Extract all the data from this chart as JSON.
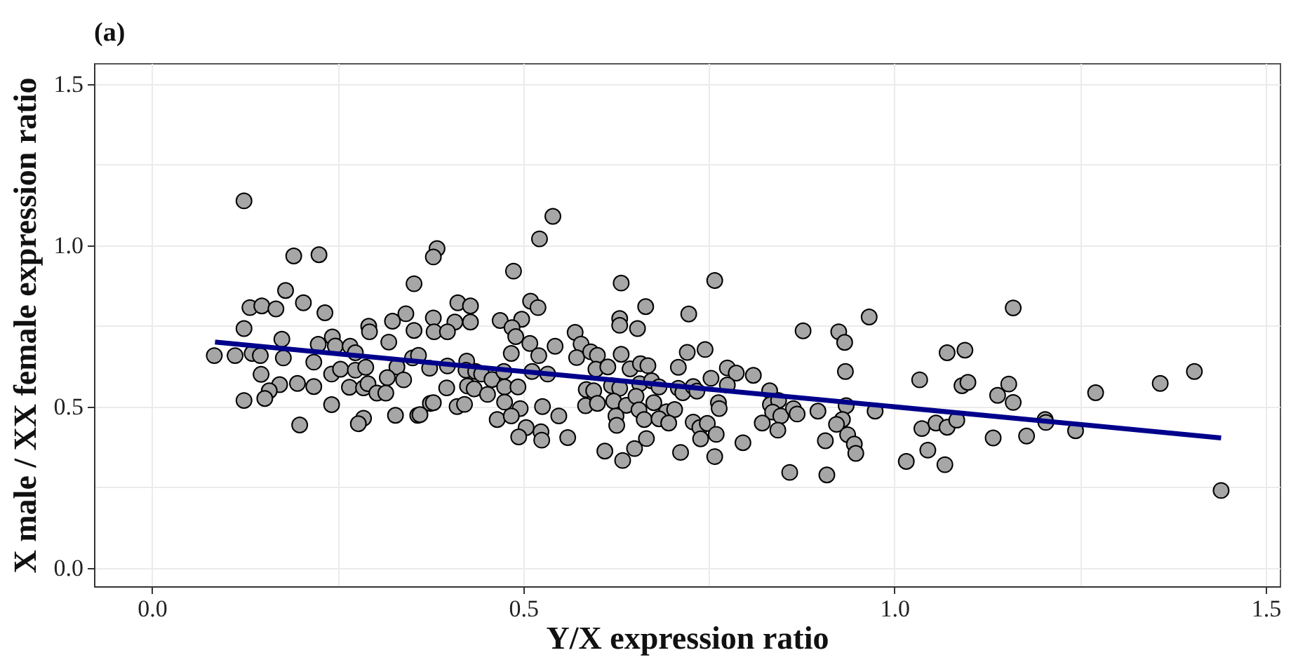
{
  "chart_data": {
    "type": "scatter",
    "title": "(a)",
    "xlabel": "Y/X expression ratio",
    "ylabel": "X male / XX female expression ratio",
    "xlim": [
      -0.078,
      1.519
    ],
    "ylim": [
      -0.057,
      1.565
    ],
    "xticks": [
      {
        "value": 0,
        "label": "0.0"
      },
      {
        "value": 0.25,
        "label": null
      },
      {
        "value": 0.5,
        "label": "0.5"
      },
      {
        "value": 0.75,
        "label": null
      },
      {
        "value": 1,
        "label": "1.0"
      },
      {
        "value": 1.25,
        "label": null
      },
      {
        "value": 1.5,
        "label": "1.5"
      }
    ],
    "yticks": [
      {
        "value": 0,
        "label": "0.0"
      },
      {
        "value": 0.25,
        "label": null
      },
      {
        "value": 0.5,
        "label": "0.5"
      },
      {
        "value": 0.75,
        "label": null
      },
      {
        "value": 1,
        "label": "1.0"
      },
      {
        "value": 1.25,
        "label": null
      },
      {
        "value": 1.5,
        "label": "1.5"
      }
    ],
    "grid": true,
    "marker": "circle",
    "series": [
      {
        "color": "#a6a6a6",
        "x": [
          0.124,
          0.191,
          0.225,
          0.353,
          0.18,
          0.132,
          0.148,
          0.167,
          0.204,
          0.233,
          0.342,
          0.324,
          0.124,
          0.292,
          0.293,
          0.353,
          0.175,
          0.243,
          0.319,
          0.224,
          0.247,
          0.267,
          0.084,
          0.112,
          0.135,
          0.146,
          0.177,
          0.218,
          0.274,
          0.351,
          0.147,
          0.242,
          0.254,
          0.274,
          0.288,
          0.33,
          0.339,
          0.317,
          0.196,
          0.218,
          0.172,
          0.158,
          0.152,
          0.124,
          0.242,
          0.266,
          0.285,
          0.291,
          0.303,
          0.315,
          0.285,
          0.278,
          0.328,
          0.358,
          0.199,
          0.54,
          0.522,
          0.384,
          0.379,
          0.487,
          0.632,
          0.758,
          0.412,
          0.429,
          0.51,
          0.52,
          0.665,
          0.723,
          0.379,
          0.408,
          0.429,
          0.469,
          0.498,
          0.38,
          0.398,
          0.485,
          0.49,
          0.63,
          0.63,
          0.654,
          0.57,
          0.578,
          0.509,
          0.543,
          0.484,
          0.521,
          0.572,
          0.591,
          0.6,
          0.632,
          0.721,
          0.745,
          0.359,
          0.374,
          0.398,
          0.424,
          0.423,
          0.436,
          0.444,
          0.458,
          0.474,
          0.512,
          0.533,
          0.598,
          0.614,
          0.644,
          0.658,
          0.668,
          0.709,
          0.753,
          0.775,
          0.787,
          0.397,
          0.425,
          0.434,
          0.452,
          0.475,
          0.493,
          0.585,
          0.595,
          0.619,
          0.63,
          0.657,
          0.673,
          0.683,
          0.709,
          0.715,
          0.729,
          0.734,
          0.775,
          0.375,
          0.379,
          0.411,
          0.421,
          0.475,
          0.496,
          0.526,
          0.584,
          0.6,
          0.622,
          0.639,
          0.652,
          0.656,
          0.676,
          0.693,
          0.704,
          0.763,
          0.764,
          0.361,
          0.465,
          0.484,
          0.548,
          0.625,
          0.626,
          0.663,
          0.683,
          0.696,
          0.729,
          0.738,
          0.748,
          0.76,
          0.504,
          0.494,
          0.524,
          0.525,
          0.56,
          0.666,
          0.739,
          0.61,
          0.65,
          0.712,
          0.634,
          0.758,
          0.796,
          0.966,
          0.877,
          0.925,
          0.933,
          1.16,
          1.071,
          1.095,
          0.934,
          0.81,
          1.034,
          1.091,
          1.099,
          1.154,
          1.16,
          1.139,
          0.832,
          0.833,
          0.844,
          0.836,
          0.847,
          0.864,
          0.869,
          0.897,
          0.935,
          0.974,
          0.822,
          0.843,
          0.93,
          0.922,
          0.937,
          0.946,
          0.948,
          0.907,
          0.859,
          0.909,
          1.037,
          1.056,
          1.071,
          1.084,
          1.133,
          1.178,
          1.203,
          1.204,
          1.016,
          1.045,
          1.068,
          1.244,
          1.271,
          1.358,
          1.404,
          1.44
        ],
        "values": [
          1.138,
          0.967,
          0.971,
          0.881,
          0.86,
          0.807,
          0.812,
          0.803,
          0.822,
          0.791,
          0.788,
          0.765,
          0.742,
          0.749,
          0.732,
          0.736,
          0.709,
          0.716,
          0.7,
          0.693,
          0.688,
          0.687,
          0.658,
          0.658,
          0.665,
          0.658,
          0.651,
          0.638,
          0.667,
          0.651,
          0.6,
          0.601,
          0.616,
          0.613,
          0.622,
          0.623,
          0.583,
          0.59,
          0.572,
          0.562,
          0.568,
          0.549,
          0.525,
          0.519,
          0.506,
          0.56,
          0.558,
          0.571,
          0.542,
          0.542,
          0.464,
          0.447,
          0.473,
          0.473,
          0.443,
          1.09,
          1.02,
          0.99,
          0.964,
          0.92,
          0.883,
          0.891,
          0.822,
          0.812,
          0.827,
          0.807,
          0.81,
          0.787,
          0.775,
          0.762,
          0.762,
          0.767,
          0.771,
          0.732,
          0.732,
          0.745,
          0.717,
          0.773,
          0.752,
          0.742,
          0.73,
          0.694,
          0.696,
          0.687,
          0.665,
          0.658,
          0.652,
          0.67,
          0.659,
          0.662,
          0.668,
          0.677,
          0.659,
          0.619,
          0.626,
          0.641,
          0.613,
          0.609,
          0.601,
          0.584,
          0.609,
          0.609,
          0.601,
          0.616,
          0.623,
          0.617,
          0.633,
          0.627,
          0.622,
          0.588,
          0.62,
          0.604,
          0.558,
          0.564,
          0.555,
          0.538,
          0.561,
          0.561,
          0.553,
          0.549,
          0.565,
          0.557,
          0.571,
          0.58,
          0.561,
          0.557,
          0.543,
          0.562,
          0.548,
          0.567,
          0.51,
          0.512,
          0.5,
          0.507,
          0.514,
          0.494,
          0.5,
          0.503,
          0.51,
          0.517,
          0.504,
          0.532,
          0.49,
          0.512,
          0.484,
          0.491,
          0.512,
          0.494,
          0.475,
          0.46,
          0.471,
          0.471,
          0.471,
          0.442,
          0.46,
          0.462,
          0.449,
          0.452,
          0.435,
          0.448,
          0.414,
          0.435,
          0.406,
          0.422,
          0.396,
          0.404,
          0.401,
          0.4,
          0.362,
          0.37,
          0.358,
          0.333,
          0.345,
          0.388,
          0.778,
          0.735,
          0.732,
          0.699,
          0.806,
          0.667,
          0.675,
          0.609,
          0.597,
          0.583,
          0.565,
          0.575,
          0.57,
          0.513,
          0.535,
          0.549,
          0.506,
          0.519,
          0.483,
          0.471,
          0.494,
          0.477,
          0.486,
          0.503,
          0.486,
          0.449,
          0.427,
          0.46,
          0.445,
          0.413,
          0.384,
          0.355,
          0.394,
          0.296,
          0.288,
          0.432,
          0.449,
          0.436,
          0.458,
          0.403,
          0.409,
          0.46,
          0.451,
          0.33,
          0.365,
          0.32,
          0.425,
          0.543,
          0.572,
          0.609,
          0.24
        ]
      },
      {
        "type": "line",
        "marker": "none",
        "color": "#00008b",
        "x": [
          0.085,
          1.44
        ],
        "values": [
          0.7,
          0.403
        ]
      }
    ]
  }
}
